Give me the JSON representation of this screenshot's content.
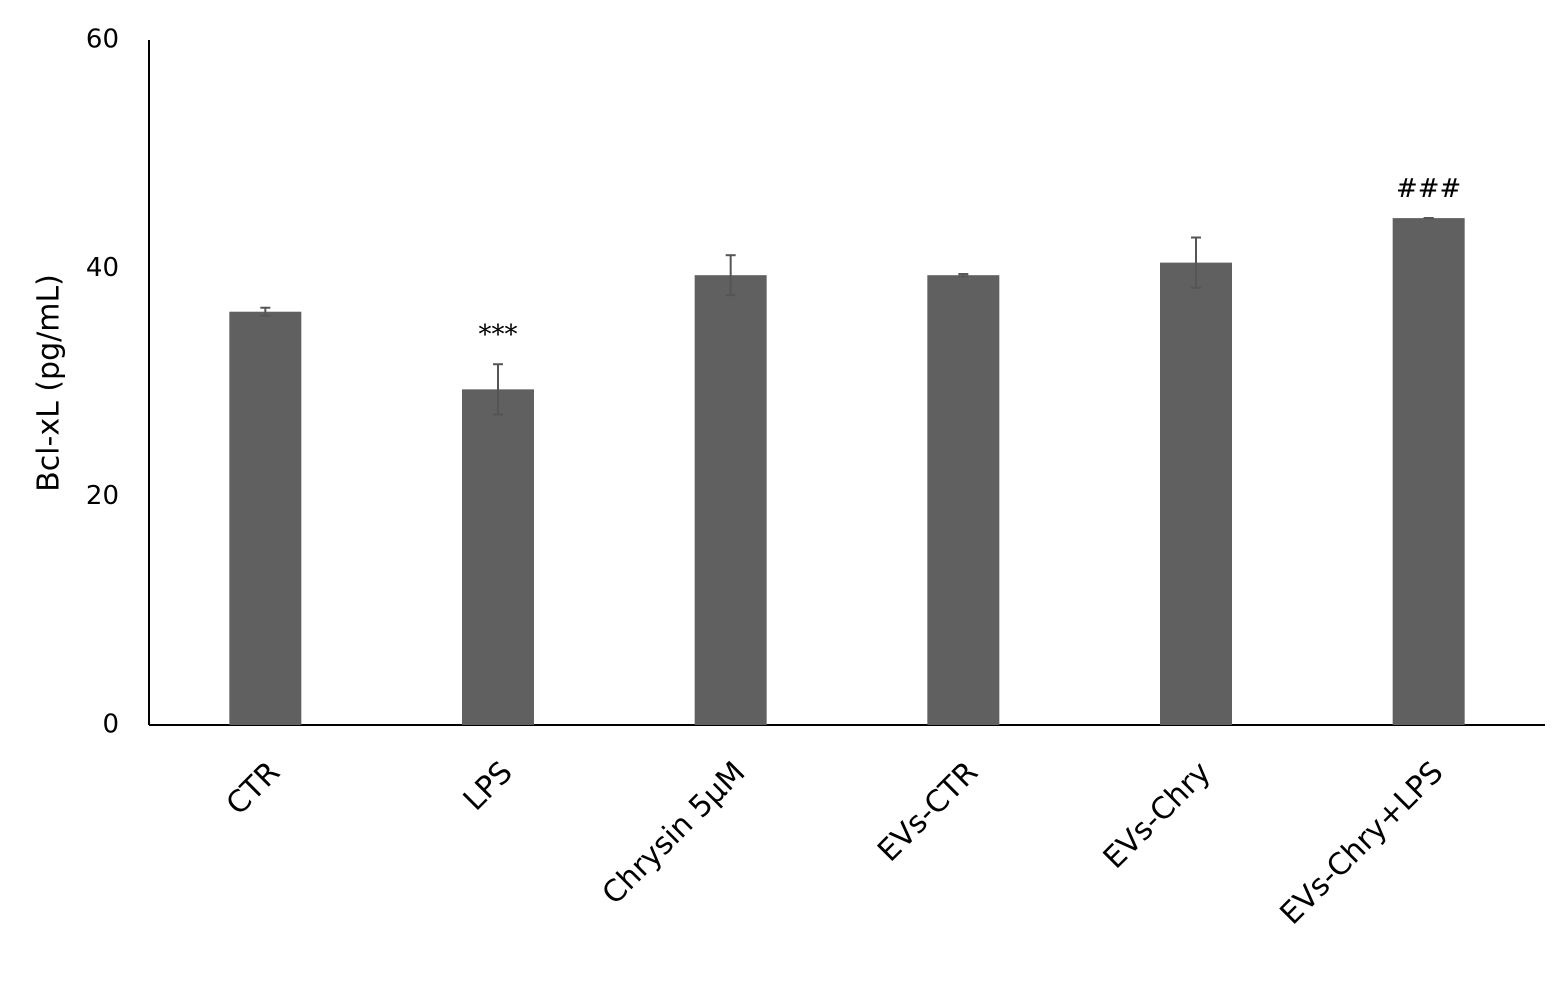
{
  "chart_data": {
    "type": "bar",
    "y_label": "Bcl-xL (pg/mL)",
    "categories": [
      "CTR",
      "LPS",
      "Chrysin 5µM",
      "EVs-CTR",
      "EVs-Chry",
      "EVs-Chry+LPS"
    ],
    "values": [
      36.2,
      29.4,
      39.4,
      39.4,
      40.5,
      44.4
    ],
    "errors": [
      0.35,
      2.2,
      1.75,
      0.1,
      2.2,
      0
    ],
    "annotations": [
      null,
      "***",
      null,
      null,
      null,
      "###"
    ],
    "color": "#606060",
    "ylim": [
      0,
      60
    ],
    "yticks": [
      0,
      20,
      40,
      60
    ],
    "grid": false
  }
}
